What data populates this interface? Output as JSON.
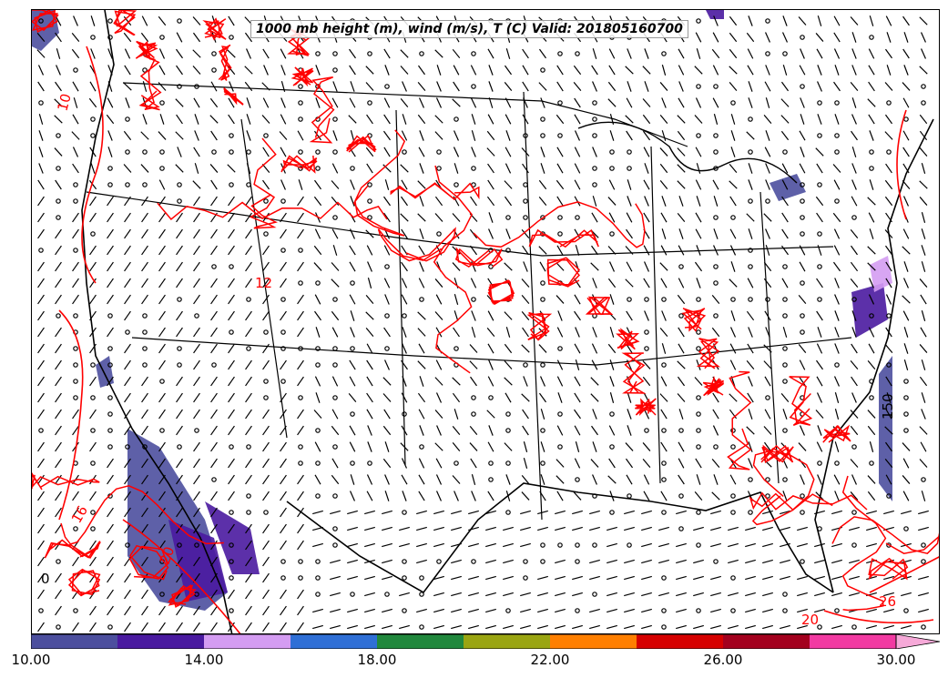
{
  "title": "1000 mb height (m), wind (m/s), T (C) Valid: 201805160700",
  "contour_labels": {
    "temperature": [
      "10",
      "12",
      "16",
      "20",
      "26",
      "20"
    ],
    "height": [
      "150",
      "0"
    ]
  },
  "colors": {
    "temperature_contour": "#ff0000",
    "height_contour": "#000000",
    "coastline": "#000000"
  },
  "colorbar": {
    "tick_labels": [
      "10.00",
      "14.00",
      "18.00",
      "22.00",
      "26.00",
      "30.00"
    ],
    "bins": [
      {
        "from": 10,
        "to": 12,
        "color": "#4c4f9e"
      },
      {
        "from": 12,
        "to": 14,
        "color": "#4a1aa0"
      },
      {
        "from": 14,
        "to": 16,
        "color": "#d49cf2"
      },
      {
        "from": 16,
        "to": 18,
        "color": "#2f6fd6"
      },
      {
        "from": 18,
        "to": 20,
        "color": "#21883d"
      },
      {
        "from": 20,
        "to": 22,
        "color": "#9aa512"
      },
      {
        "from": 22,
        "to": 24,
        "color": "#ff7f00"
      },
      {
        "from": 24,
        "to": 26,
        "color": "#d60000"
      },
      {
        "from": 26,
        "to": 28,
        "color": "#a3001e"
      },
      {
        "from": 28,
        "to": 30,
        "color": "#f23aa2"
      }
    ],
    "extend_color": "#f6a9d8",
    "extend": "max"
  }
}
